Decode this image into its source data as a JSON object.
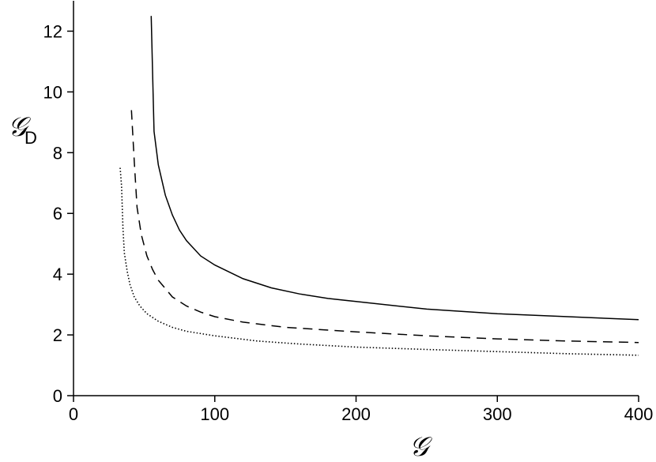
{
  "chart_data": {
    "type": "line",
    "title": "",
    "xlabel": "𝒢",
    "ylabel": {
      "main": "𝒢",
      "sub": "D"
    },
    "xlim": [
      0,
      400
    ],
    "ylim": [
      0,
      13
    ],
    "xticks": [
      0,
      100,
      200,
      300,
      400
    ],
    "yticks": [
      0,
      2,
      4,
      6,
      8,
      10,
      12
    ],
    "xtick_labels": [
      "0",
      "100",
      "200",
      "300",
      "400"
    ],
    "ytick_labels": [
      "0",
      "2",
      "4",
      "6",
      "8",
      "10",
      "12"
    ],
    "grid": false,
    "legend": "none",
    "series": [
      {
        "style": "solid",
        "color": "#000000",
        "x": [
          55,
          57,
          60,
          65,
          70,
          75,
          80,
          90,
          100,
          120,
          140,
          160,
          180,
          200,
          250,
          300,
          350,
          400
        ],
        "y": [
          12.5,
          8.7,
          7.6,
          6.6,
          5.95,
          5.45,
          5.1,
          4.6,
          4.3,
          3.85,
          3.55,
          3.35,
          3.2,
          3.1,
          2.85,
          2.7,
          2.6,
          2.5
        ]
      },
      {
        "style": "dashed",
        "color": "#000000",
        "x": [
          41,
          43,
          45,
          48,
          52,
          56,
          60,
          70,
          80,
          90,
          100,
          120,
          150,
          200,
          250,
          300,
          350,
          400
        ],
        "y": [
          9.4,
          7.7,
          6.2,
          5.3,
          4.6,
          4.15,
          3.8,
          3.25,
          2.95,
          2.75,
          2.6,
          2.42,
          2.25,
          2.1,
          1.97,
          1.87,
          1.8,
          1.75
        ]
      },
      {
        "style": "dotted",
        "color": "#000000",
        "x": [
          33,
          34,
          35,
          36,
          38,
          40,
          43,
          47,
          52,
          60,
          70,
          80,
          100,
          130,
          160,
          200,
          250,
          300,
          350,
          400
        ],
        "y": [
          7.5,
          6.9,
          5.5,
          4.7,
          4.1,
          3.65,
          3.25,
          2.95,
          2.7,
          2.45,
          2.25,
          2.12,
          1.97,
          1.8,
          1.7,
          1.6,
          1.52,
          1.45,
          1.38,
          1.33
        ]
      }
    ]
  }
}
